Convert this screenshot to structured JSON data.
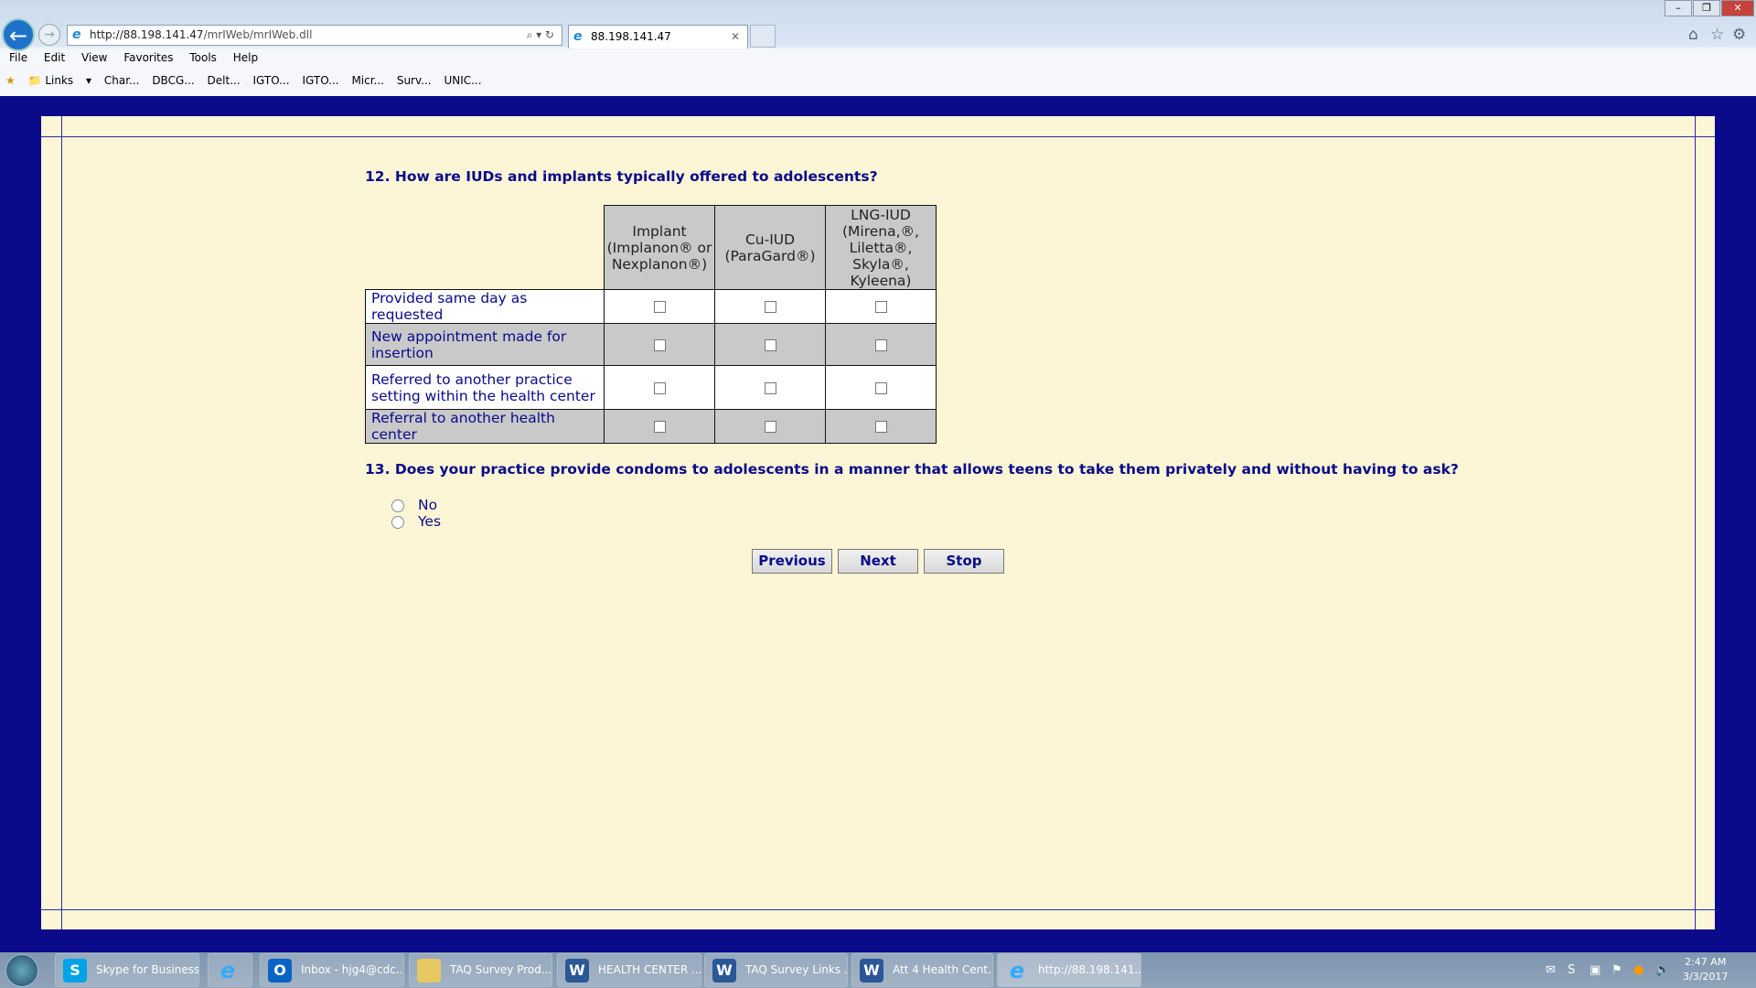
{
  "browser": {
    "url_host": "http://88.198.141.47",
    "url_path": "/mrIWeb/mrIWeb.dll",
    "tab_title": "88.198.141.47",
    "menu": [
      "File",
      "Edit",
      "View",
      "Favorites",
      "Tools",
      "Help"
    ],
    "favorites": [
      "Links",
      "Char...",
      "DBCG...",
      "Delt...",
      "IGTO...",
      "IGTO...",
      "Micr...",
      "Surv...",
      "UNIC..."
    ]
  },
  "survey": {
    "q12": {
      "text": "12. How are IUDs and implants typically offered to adolescents?",
      "columns": [
        "Implant (Implanon® or Nexplanon®)",
        "Cu-IUD (ParaGard®)",
        "LNG-IUD (Mirena,®, Liletta®, Skyla®, Kyleena)"
      ],
      "rows": [
        "Provided same day as requested",
        "New appointment made for insertion",
        "Referred to another practice setting within the health center",
        "Referral to another health center"
      ]
    },
    "q13": {
      "text": "13. Does your practice provide condoms to adolescents in a manner that allows teens to take them privately and without having to ask?",
      "options": [
        "No",
        "Yes"
      ]
    },
    "buttons": {
      "previous": "Previous",
      "next": "Next",
      "stop": "Stop"
    }
  },
  "taskbar": {
    "items": [
      "Skype for Business",
      "",
      "Inbox - hjg4@cdc...",
      "TAQ Survey Prod...",
      "HEALTH CENTER ...",
      "TAQ Survey Links ...",
      "Att 4 Health Cent...",
      "http://88.198.141...."
    ],
    "time": "2:47 AM",
    "date": "3/3/2017"
  },
  "colors": {
    "page_bg": "#0a0a8a",
    "panel": "#fcf6d6",
    "text": "#0a0a8a",
    "header_cell": "#c9c9c9"
  }
}
